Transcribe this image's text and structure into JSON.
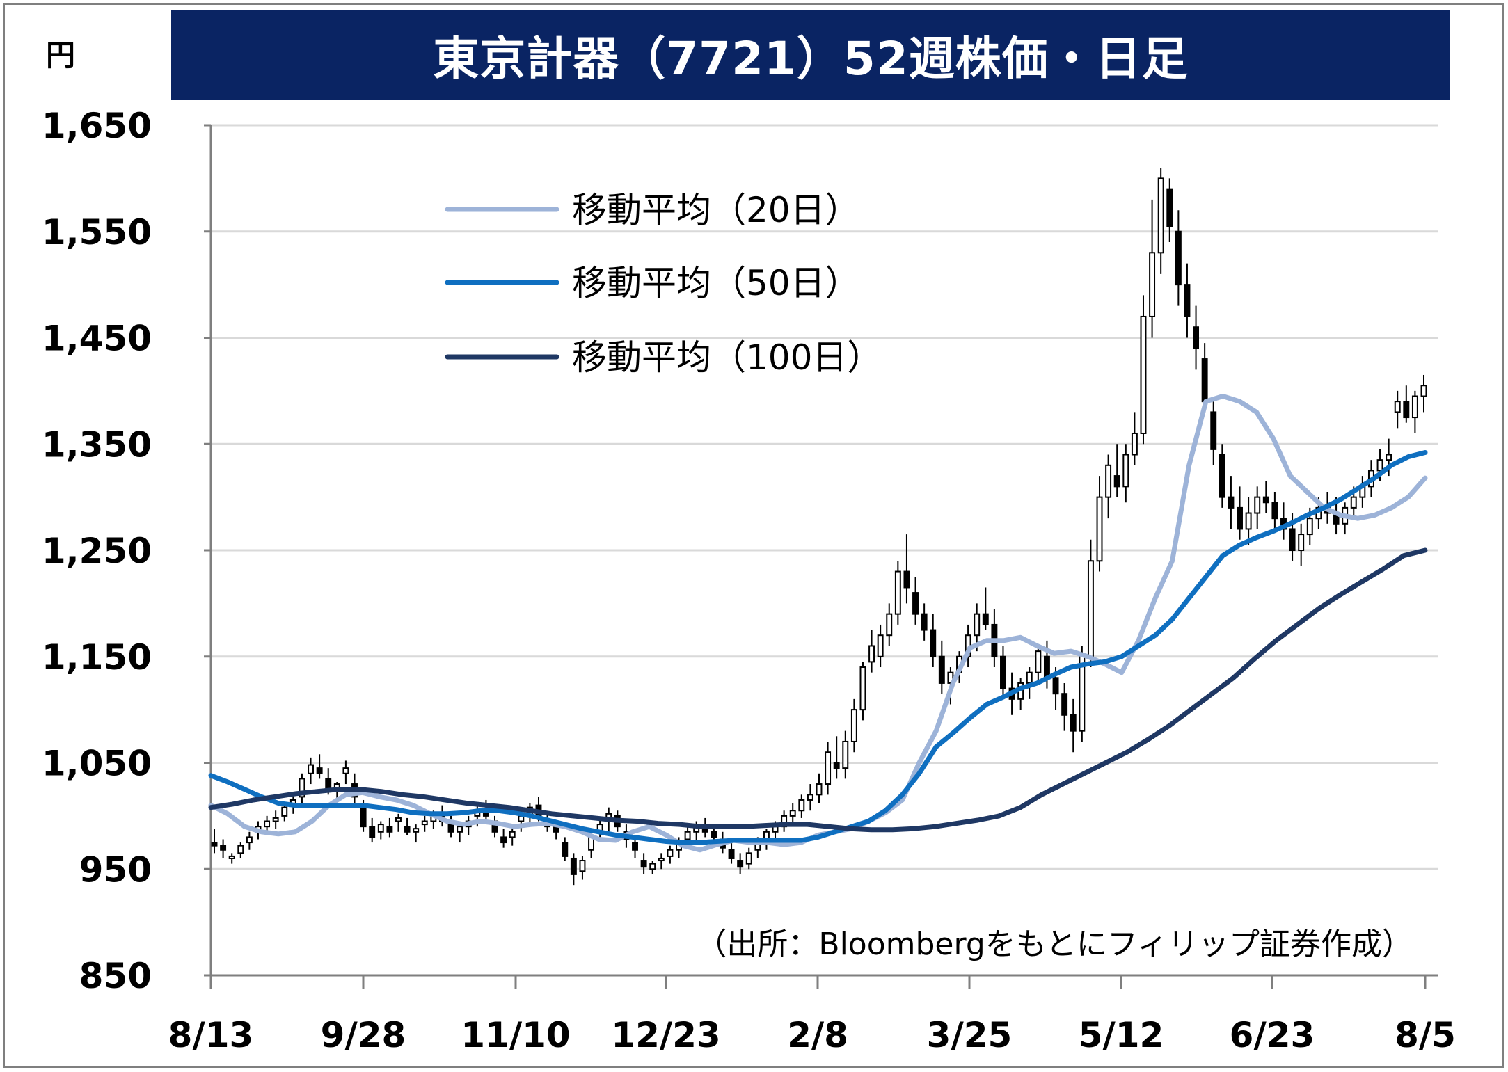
{
  "title": "東京計器（7721）52週株価・日足",
  "unit": "円",
  "source_note": "（出所：Bloombergをもとにフィリップ証券作成）",
  "colors": {
    "title_bg": "#0a2463",
    "ma20": "#9db3d8",
    "ma50": "#0f6fc0",
    "ma100": "#1f3864",
    "candle": "#000000",
    "grid": "#d9d9d9"
  },
  "chart_data": {
    "type": "candlestick",
    "title": "東京計器（7721）52週株価・日足",
    "ylabel": "円",
    "ylim": [
      850,
      1650
    ],
    "yticks": [
      850,
      950,
      1050,
      1150,
      1250,
      1350,
      1450,
      1550,
      1650
    ],
    "ytick_labels": [
      "850",
      "950",
      "1,050",
      "1,150",
      "1,250",
      "1,350",
      "1,450",
      "1,550",
      "1,650"
    ],
    "xticks": [
      "8/13",
      "9/28",
      "11/10",
      "12/23",
      "2/8",
      "3/25",
      "5/12",
      "6/23",
      "8/5"
    ],
    "grid": true,
    "legend_position": "top-left",
    "series": [
      {
        "name": "移動平均（20日）",
        "type": "line",
        "values": [
          1010,
          1002,
          990,
          985,
          983,
          985,
          995,
          1010,
          1020,
          1022,
          1018,
          1015,
          1010,
          1002,
          995,
          992,
          995,
          993,
          990,
          992,
          993,
          990,
          985,
          978,
          977,
          985,
          990,
          982,
          972,
          968,
          973,
          977,
          975,
          975,
          973,
          975,
          982,
          985,
          988,
          995,
          1003,
          1015,
          1050,
          1080,
          1125,
          1158,
          1165,
          1165,
          1168,
          1160,
          1153,
          1155,
          1150,
          1143,
          1135,
          1165,
          1205,
          1240,
          1330,
          1390,
          1395,
          1390,
          1380,
          1355,
          1320,
          1305,
          1290,
          1283,
          1280,
          1283,
          1290,
          1300,
          1318
        ]
      },
      {
        "name": "移動平均（50日）",
        "type": "line",
        "values": [
          1038,
          1032,
          1025,
          1018,
          1012,
          1010,
          1010,
          1010,
          1010,
          1010,
          1008,
          1006,
          1003,
          1002,
          1002,
          1003,
          1005,
          1005,
          1003,
          1000,
          996,
          992,
          988,
          985,
          982,
          980,
          978,
          976,
          975,
          975,
          976,
          977,
          977,
          977,
          977,
          977,
          980,
          985,
          990,
          995,
          1005,
          1020,
          1040,
          1065,
          1078,
          1092,
          1105,
          1112,
          1120,
          1125,
          1133,
          1140,
          1143,
          1145,
          1150,
          1160,
          1170,
          1185,
          1205,
          1225,
          1245,
          1255,
          1262,
          1268,
          1275,
          1283,
          1290,
          1298,
          1308,
          1318,
          1330,
          1338,
          1342
        ]
      },
      {
        "name": "移動平均（100日）",
        "type": "line",
        "values": [
          1008,
          1011,
          1015,
          1018,
          1021,
          1023,
          1025,
          1025,
          1023,
          1020,
          1018,
          1015,
          1012,
          1010,
          1008,
          1005,
          1002,
          1000,
          998,
          996,
          995,
          993,
          992,
          990,
          990,
          990,
          991,
          992,
          992,
          990,
          988,
          987,
          987,
          988,
          990,
          993,
          996,
          1000,
          1008,
          1020,
          1030,
          1040,
          1050,
          1060,
          1072,
          1085,
          1100,
          1115,
          1130,
          1148,
          1165,
          1180,
          1195,
          1208,
          1220,
          1232,
          1245,
          1250
        ]
      }
    ],
    "candles": [
      [
        975,
        988,
        965,
        972
      ],
      [
        972,
        978,
        960,
        968
      ],
      [
        960,
        965,
        955,
        962
      ],
      [
        965,
        975,
        960,
        972
      ],
      [
        975,
        985,
        968,
        980
      ],
      [
        985,
        995,
        978,
        990
      ],
      [
        990,
        1000,
        985,
        995
      ],
      [
        995,
        1005,
        988,
        998
      ],
      [
        1000,
        1012,
        995,
        1008
      ],
      [
        1010,
        1020,
        1002,
        1015
      ],
      [
        1018,
        1040,
        1010,
        1035
      ],
      [
        1040,
        1055,
        1030,
        1048
      ],
      [
        1045,
        1058,
        1035,
        1040
      ],
      [
        1035,
        1045,
        1020,
        1025
      ],
      [
        1025,
        1032,
        1015,
        1030
      ],
      [
        1040,
        1052,
        1030,
        1045
      ],
      [
        1030,
        1040,
        1010,
        1018
      ],
      [
        1010,
        1015,
        985,
        990
      ],
      [
        990,
        998,
        975,
        980
      ],
      [
        985,
        995,
        978,
        992
      ],
      [
        990,
        998,
        980,
        985
      ],
      [
        995,
        1002,
        985,
        998
      ],
      [
        990,
        998,
        982,
        985
      ],
      [
        985,
        992,
        975,
        988
      ],
      [
        992,
        1000,
        985,
        995
      ],
      [
        995,
        1005,
        988,
        1000
      ],
      [
        1000,
        1010,
        990,
        995
      ],
      [
        995,
        1000,
        980,
        985
      ],
      [
        985,
        992,
        975,
        990
      ],
      [
        990,
        1000,
        982,
        995
      ],
      [
        1000,
        1010,
        990,
        1005
      ],
      [
        1005,
        1015,
        995,
        1000
      ],
      [
        995,
        1000,
        980,
        985
      ],
      [
        980,
        988,
        970,
        975
      ],
      [
        980,
        990,
        972,
        985
      ],
      [
        995,
        1005,
        985,
        1000
      ],
      [
        1000,
        1012,
        990,
        1008
      ],
      [
        1010,
        1018,
        995,
        1000
      ],
      [
        995,
        1002,
        985,
        990
      ],
      [
        990,
        996,
        978,
        985
      ],
      [
        975,
        980,
        958,
        962
      ],
      [
        960,
        965,
        935,
        945
      ],
      [
        948,
        962,
        940,
        958
      ],
      [
        968,
        985,
        960,
        980
      ],
      [
        985,
        998,
        978,
        992
      ],
      [
        995,
        1008,
        985,
        1002
      ],
      [
        1000,
        1005,
        985,
        990
      ],
      [
        985,
        992,
        970,
        978
      ],
      [
        975,
        982,
        960,
        968
      ],
      [
        958,
        965,
        945,
        952
      ],
      [
        950,
        958,
        945,
        955
      ],
      [
        958,
        965,
        950,
        960
      ],
      [
        962,
        972,
        955,
        968
      ],
      [
        968,
        980,
        960,
        975
      ],
      [
        978,
        990,
        970,
        985
      ],
      [
        985,
        995,
        975,
        990
      ],
      [
        990,
        998,
        980,
        985
      ],
      [
        985,
        992,
        975,
        980
      ],
      [
        978,
        985,
        965,
        970
      ],
      [
        968,
        975,
        955,
        960
      ],
      [
        958,
        965,
        945,
        952
      ],
      [
        955,
        970,
        950,
        965
      ],
      [
        968,
        980,
        960,
        975
      ],
      [
        975,
        988,
        968,
        985
      ],
      [
        985,
        995,
        978,
        990
      ],
      [
        990,
        1005,
        985,
        1000
      ],
      [
        1000,
        1012,
        992,
        1005
      ],
      [
        1005,
        1020,
        998,
        1015
      ],
      [
        1015,
        1030,
        1005,
        1020
      ],
      [
        1020,
        1040,
        1012,
        1030
      ],
      [
        1030,
        1070,
        1020,
        1060
      ],
      [
        1050,
        1075,
        1035,
        1045
      ],
      [
        1045,
        1080,
        1035,
        1070
      ],
      [
        1070,
        1110,
        1060,
        1100
      ],
      [
        1100,
        1145,
        1090,
        1140
      ],
      [
        1145,
        1175,
        1135,
        1160
      ],
      [
        1150,
        1180,
        1140,
        1170
      ],
      [
        1170,
        1200,
        1160,
        1190
      ],
      [
        1190,
        1240,
        1180,
        1230
      ],
      [
        1230,
        1265,
        1200,
        1215
      ],
      [
        1210,
        1225,
        1180,
        1190
      ],
      [
        1190,
        1200,
        1165,
        1175
      ],
      [
        1175,
        1190,
        1140,
        1150
      ],
      [
        1150,
        1165,
        1115,
        1125
      ],
      [
        1125,
        1140,
        1105,
        1135
      ],
      [
        1135,
        1155,
        1125,
        1150
      ],
      [
        1150,
        1180,
        1140,
        1170
      ],
      [
        1170,
        1200,
        1155,
        1190
      ],
      [
        1190,
        1215,
        1175,
        1180
      ],
      [
        1180,
        1195,
        1140,
        1150
      ],
      [
        1150,
        1160,
        1110,
        1120
      ],
      [
        1120,
        1135,
        1095,
        1110
      ],
      [
        1110,
        1130,
        1100,
        1125
      ],
      [
        1125,
        1140,
        1110,
        1135
      ],
      [
        1135,
        1160,
        1125,
        1155
      ],
      [
        1150,
        1165,
        1120,
        1130
      ],
      [
        1130,
        1140,
        1100,
        1115
      ],
      [
        1115,
        1125,
        1080,
        1095
      ],
      [
        1095,
        1110,
        1060,
        1080
      ],
      [
        1080,
        1160,
        1070,
        1150
      ],
      [
        1150,
        1260,
        1140,
        1240
      ],
      [
        1240,
        1320,
        1230,
        1300
      ],
      [
        1300,
        1340,
        1280,
        1330
      ],
      [
        1320,
        1350,
        1300,
        1310
      ],
      [
        1310,
        1350,
        1295,
        1340
      ],
      [
        1340,
        1380,
        1330,
        1360
      ],
      [
        1360,
        1490,
        1350,
        1470
      ],
      [
        1470,
        1580,
        1450,
        1530
      ],
      [
        1530,
        1610,
        1510,
        1600
      ],
      [
        1590,
        1600,
        1540,
        1555
      ],
      [
        1550,
        1570,
        1480,
        1500
      ],
      [
        1500,
        1520,
        1450,
        1470
      ],
      [
        1460,
        1480,
        1420,
        1440
      ],
      [
        1430,
        1445,
        1380,
        1390
      ],
      [
        1380,
        1390,
        1330,
        1345
      ],
      [
        1340,
        1350,
        1290,
        1300
      ],
      [
        1300,
        1320,
        1270,
        1290
      ],
      [
        1290,
        1310,
        1260,
        1270
      ],
      [
        1270,
        1300,
        1255,
        1285
      ],
      [
        1285,
        1310,
        1270,
        1300
      ],
      [
        1300,
        1315,
        1285,
        1295
      ],
      [
        1295,
        1305,
        1270,
        1280
      ],
      [
        1280,
        1295,
        1260,
        1270
      ],
      [
        1270,
        1285,
        1240,
        1250
      ],
      [
        1250,
        1275,
        1235,
        1265
      ],
      [
        1265,
        1290,
        1255,
        1280
      ],
      [
        1280,
        1300,
        1270,
        1290
      ],
      [
        1290,
        1305,
        1275,
        1285
      ],
      [
        1285,
        1300,
        1265,
        1275
      ],
      [
        1275,
        1295,
        1265,
        1290
      ],
      [
        1290,
        1310,
        1280,
        1300
      ],
      [
        1300,
        1320,
        1290,
        1310
      ],
      [
        1310,
        1335,
        1300,
        1325
      ],
      [
        1325,
        1345,
        1315,
        1335
      ],
      [
        1335,
        1355,
        1320,
        1340
      ],
      [
        1380,
        1400,
        1365,
        1390
      ],
      [
        1390,
        1405,
        1370,
        1375
      ],
      [
        1375,
        1400,
        1360,
        1395
      ],
      [
        1395,
        1415,
        1380,
        1405
      ]
    ]
  },
  "legend": [
    {
      "label": "移動平均（20日）"
    },
    {
      "label": "移動平均（50日）"
    },
    {
      "label": "移動平均（100日）"
    }
  ]
}
